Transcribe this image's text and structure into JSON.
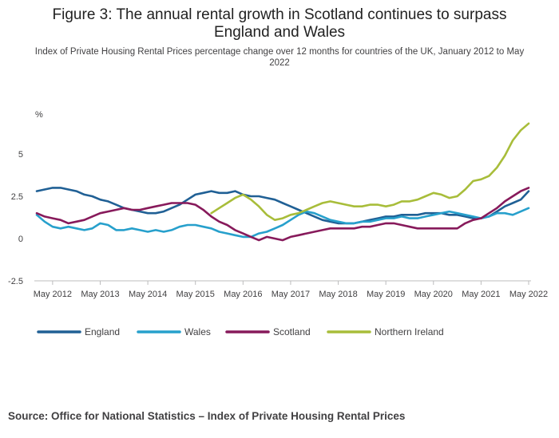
{
  "title": "Figure 3: The annual rental growth in Scotland continues to surpass England and Wales",
  "subtitle": "Index of Private Housing Rental Prices percentage change over 12 months for countries of the UK, January 2012 to May 2022",
  "source": "Source: Office for National Statistics – Index of Private Housing Rental Prices",
  "chart_data": {
    "type": "line",
    "ylabel": "%",
    "ylim": [
      -2.5,
      7.5
    ],
    "yticks": [
      "5",
      "2.5",
      "0",
      "-2.5"
    ],
    "yticks_values": [
      5,
      2.5,
      0,
      -2.5
    ],
    "xticks": [
      "May 2012",
      "May 2013",
      "May 2014",
      "May 2015",
      "May 2016",
      "May 2017",
      "May 2018",
      "May 2019",
      "May 2020",
      "May 2021",
      "May 2022"
    ],
    "x_start": "2012-01",
    "x_end": "2022-05",
    "grid": "none",
    "legend_position": "bottom",
    "series": [
      {
        "name": "England",
        "color": "#206095",
        "points": [
          [
            "2012-01",
            2.8
          ],
          [
            "2012-03",
            2.9
          ],
          [
            "2012-05",
            3.0
          ],
          [
            "2012-07",
            3.0
          ],
          [
            "2012-09",
            2.9
          ],
          [
            "2012-11",
            2.8
          ],
          [
            "2013-01",
            2.6
          ],
          [
            "2013-03",
            2.5
          ],
          [
            "2013-05",
            2.3
          ],
          [
            "2013-07",
            2.2
          ],
          [
            "2013-09",
            2.0
          ],
          [
            "2013-11",
            1.8
          ],
          [
            "2014-01",
            1.7
          ],
          [
            "2014-03",
            1.6
          ],
          [
            "2014-05",
            1.5
          ],
          [
            "2014-07",
            1.5
          ],
          [
            "2014-09",
            1.6
          ],
          [
            "2014-11",
            1.8
          ],
          [
            "2015-01",
            2.0
          ],
          [
            "2015-03",
            2.3
          ],
          [
            "2015-05",
            2.6
          ],
          [
            "2015-07",
            2.7
          ],
          [
            "2015-09",
            2.8
          ],
          [
            "2015-11",
            2.7
          ],
          [
            "2016-01",
            2.7
          ],
          [
            "2016-03",
            2.8
          ],
          [
            "2016-05",
            2.6
          ],
          [
            "2016-07",
            2.5
          ],
          [
            "2016-09",
            2.5
          ],
          [
            "2016-11",
            2.4
          ],
          [
            "2017-01",
            2.3
          ],
          [
            "2017-03",
            2.1
          ],
          [
            "2017-05",
            1.9
          ],
          [
            "2017-07",
            1.7
          ],
          [
            "2017-09",
            1.5
          ],
          [
            "2017-11",
            1.3
          ],
          [
            "2018-01",
            1.1
          ],
          [
            "2018-03",
            1.0
          ],
          [
            "2018-05",
            0.9
          ],
          [
            "2018-07",
            0.9
          ],
          [
            "2018-09",
            0.9
          ],
          [
            "2018-11",
            1.0
          ],
          [
            "2019-01",
            1.1
          ],
          [
            "2019-03",
            1.2
          ],
          [
            "2019-05",
            1.3
          ],
          [
            "2019-07",
            1.3
          ],
          [
            "2019-09",
            1.4
          ],
          [
            "2019-11",
            1.4
          ],
          [
            "2020-01",
            1.4
          ],
          [
            "2020-03",
            1.5
          ],
          [
            "2020-05",
            1.5
          ],
          [
            "2020-07",
            1.5
          ],
          [
            "2020-09",
            1.4
          ],
          [
            "2020-11",
            1.4
          ],
          [
            "2021-01",
            1.3
          ],
          [
            "2021-03",
            1.2
          ],
          [
            "2021-05",
            1.2
          ],
          [
            "2021-07",
            1.3
          ],
          [
            "2021-09",
            1.6
          ],
          [
            "2021-11",
            1.9
          ],
          [
            "2022-01",
            2.1
          ],
          [
            "2022-03",
            2.3
          ],
          [
            "2022-05",
            2.8
          ]
        ]
      },
      {
        "name": "Wales",
        "color": "#27a0cc",
        "points": [
          [
            "2012-01",
            1.4
          ],
          [
            "2012-03",
            1.0
          ],
          [
            "2012-05",
            0.7
          ],
          [
            "2012-07",
            0.6
          ],
          [
            "2012-09",
            0.7
          ],
          [
            "2012-11",
            0.6
          ],
          [
            "2013-01",
            0.5
          ],
          [
            "2013-03",
            0.6
          ],
          [
            "2013-05",
            0.9
          ],
          [
            "2013-07",
            0.8
          ],
          [
            "2013-09",
            0.5
          ],
          [
            "2013-11",
            0.5
          ],
          [
            "2014-01",
            0.6
          ],
          [
            "2014-03",
            0.5
          ],
          [
            "2014-05",
            0.4
          ],
          [
            "2014-07",
            0.5
          ],
          [
            "2014-09",
            0.4
          ],
          [
            "2014-11",
            0.5
          ],
          [
            "2015-01",
            0.7
          ],
          [
            "2015-03",
            0.8
          ],
          [
            "2015-05",
            0.8
          ],
          [
            "2015-07",
            0.7
          ],
          [
            "2015-09",
            0.6
          ],
          [
            "2015-11",
            0.4
          ],
          [
            "2016-01",
            0.3
          ],
          [
            "2016-03",
            0.2
          ],
          [
            "2016-05",
            0.1
          ],
          [
            "2016-07",
            0.1
          ],
          [
            "2016-09",
            0.3
          ],
          [
            "2016-11",
            0.4
          ],
          [
            "2017-01",
            0.6
          ],
          [
            "2017-03",
            0.8
          ],
          [
            "2017-05",
            1.1
          ],
          [
            "2017-07",
            1.4
          ],
          [
            "2017-09",
            1.6
          ],
          [
            "2017-11",
            1.5
          ],
          [
            "2018-01",
            1.3
          ],
          [
            "2018-03",
            1.1
          ],
          [
            "2018-05",
            1.0
          ],
          [
            "2018-07",
            0.9
          ],
          [
            "2018-09",
            0.9
          ],
          [
            "2018-11",
            1.0
          ],
          [
            "2019-01",
            1.0
          ],
          [
            "2019-03",
            1.1
          ],
          [
            "2019-05",
            1.2
          ],
          [
            "2019-07",
            1.2
          ],
          [
            "2019-09",
            1.3
          ],
          [
            "2019-11",
            1.2
          ],
          [
            "2020-01",
            1.2
          ],
          [
            "2020-03",
            1.3
          ],
          [
            "2020-05",
            1.4
          ],
          [
            "2020-07",
            1.5
          ],
          [
            "2020-09",
            1.6
          ],
          [
            "2020-11",
            1.5
          ],
          [
            "2021-01",
            1.4
          ],
          [
            "2021-03",
            1.3
          ],
          [
            "2021-05",
            1.2
          ],
          [
            "2021-07",
            1.3
          ],
          [
            "2021-09",
            1.5
          ],
          [
            "2021-11",
            1.5
          ],
          [
            "2022-01",
            1.4
          ],
          [
            "2022-03",
            1.6
          ],
          [
            "2022-05",
            1.8
          ]
        ]
      },
      {
        "name": "Scotland",
        "color": "#871a5b",
        "points": [
          [
            "2012-01",
            1.5
          ],
          [
            "2012-03",
            1.3
          ],
          [
            "2012-05",
            1.2
          ],
          [
            "2012-07",
            1.1
          ],
          [
            "2012-09",
            0.9
          ],
          [
            "2012-11",
            1.0
          ],
          [
            "2013-01",
            1.1
          ],
          [
            "2013-03",
            1.3
          ],
          [
            "2013-05",
            1.5
          ],
          [
            "2013-07",
            1.6
          ],
          [
            "2013-09",
            1.7
          ],
          [
            "2013-11",
            1.8
          ],
          [
            "2014-01",
            1.7
          ],
          [
            "2014-03",
            1.7
          ],
          [
            "2014-05",
            1.8
          ],
          [
            "2014-07",
            1.9
          ],
          [
            "2014-09",
            2.0
          ],
          [
            "2014-11",
            2.1
          ],
          [
            "2015-01",
            2.1
          ],
          [
            "2015-03",
            2.1
          ],
          [
            "2015-05",
            2.0
          ],
          [
            "2015-07",
            1.7
          ],
          [
            "2015-09",
            1.3
          ],
          [
            "2015-11",
            1.0
          ],
          [
            "2016-01",
            0.8
          ],
          [
            "2016-03",
            0.5
          ],
          [
            "2016-05",
            0.3
          ],
          [
            "2016-07",
            0.1
          ],
          [
            "2016-09",
            -0.1
          ],
          [
            "2016-11",
            0.1
          ],
          [
            "2017-01",
            0.0
          ],
          [
            "2017-03",
            -0.1
          ],
          [
            "2017-05",
            0.1
          ],
          [
            "2017-07",
            0.2
          ],
          [
            "2017-09",
            0.3
          ],
          [
            "2017-11",
            0.4
          ],
          [
            "2018-01",
            0.5
          ],
          [
            "2018-03",
            0.6
          ],
          [
            "2018-05",
            0.6
          ],
          [
            "2018-07",
            0.6
          ],
          [
            "2018-09",
            0.6
          ],
          [
            "2018-11",
            0.7
          ],
          [
            "2019-01",
            0.7
          ],
          [
            "2019-03",
            0.8
          ],
          [
            "2019-05",
            0.9
          ],
          [
            "2019-07",
            0.9
          ],
          [
            "2019-09",
            0.8
          ],
          [
            "2019-11",
            0.7
          ],
          [
            "2020-01",
            0.6
          ],
          [
            "2020-03",
            0.6
          ],
          [
            "2020-05",
            0.6
          ],
          [
            "2020-07",
            0.6
          ],
          [
            "2020-09",
            0.6
          ],
          [
            "2020-11",
            0.6
          ],
          [
            "2021-01",
            0.9
          ],
          [
            "2021-03",
            1.1
          ],
          [
            "2021-05",
            1.2
          ],
          [
            "2021-07",
            1.5
          ],
          [
            "2021-09",
            1.8
          ],
          [
            "2021-11",
            2.2
          ],
          [
            "2022-01",
            2.5
          ],
          [
            "2022-03",
            2.8
          ],
          [
            "2022-05",
            3.0
          ]
        ]
      },
      {
        "name": "Northern Ireland",
        "color": "#a8bd3a",
        "points": [
          [
            "2015-09",
            1.5
          ],
          [
            "2015-11",
            1.8
          ],
          [
            "2016-01",
            2.1
          ],
          [
            "2016-03",
            2.4
          ],
          [
            "2016-05",
            2.6
          ],
          [
            "2016-07",
            2.3
          ],
          [
            "2016-09",
            1.9
          ],
          [
            "2016-11",
            1.4
          ],
          [
            "2017-01",
            1.1
          ],
          [
            "2017-03",
            1.2
          ],
          [
            "2017-05",
            1.4
          ],
          [
            "2017-07",
            1.5
          ],
          [
            "2017-09",
            1.7
          ],
          [
            "2017-11",
            1.9
          ],
          [
            "2018-01",
            2.1
          ],
          [
            "2018-03",
            2.2
          ],
          [
            "2018-05",
            2.1
          ],
          [
            "2018-07",
            2.0
          ],
          [
            "2018-09",
            1.9
          ],
          [
            "2018-11",
            1.9
          ],
          [
            "2019-01",
            2.0
          ],
          [
            "2019-03",
            2.0
          ],
          [
            "2019-05",
            1.9
          ],
          [
            "2019-07",
            2.0
          ],
          [
            "2019-09",
            2.2
          ],
          [
            "2019-11",
            2.2
          ],
          [
            "2020-01",
            2.3
          ],
          [
            "2020-03",
            2.5
          ],
          [
            "2020-05",
            2.7
          ],
          [
            "2020-07",
            2.6
          ],
          [
            "2020-09",
            2.4
          ],
          [
            "2020-11",
            2.5
          ],
          [
            "2021-01",
            2.9
          ],
          [
            "2021-03",
            3.4
          ],
          [
            "2021-05",
            3.5
          ],
          [
            "2021-07",
            3.7
          ],
          [
            "2021-09",
            4.2
          ],
          [
            "2021-11",
            4.9
          ],
          [
            "2022-01",
            5.8
          ],
          [
            "2022-03",
            6.4
          ],
          [
            "2022-05",
            6.8
          ]
        ]
      }
    ]
  }
}
